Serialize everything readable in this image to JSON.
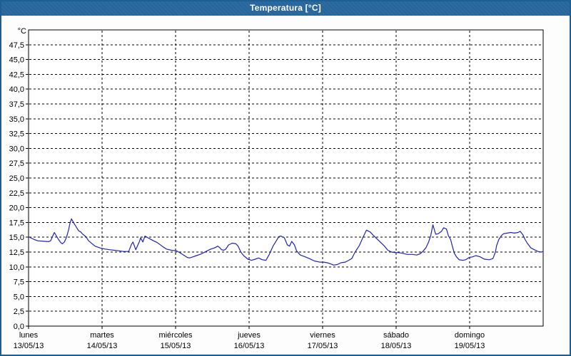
{
  "window": {
    "title": "Temperatura [°C]"
  },
  "colors": {
    "titlebar_bg": "#2c6ba1",
    "titlebar_text": "#ffffff",
    "frame_border": "#1e5f93",
    "panel_bg": "#fdfdfd",
    "plot_bg": "#ffffff",
    "axis_color": "#000000",
    "grid_color": "#000000",
    "line_color": "#2121bd",
    "label_color": "#000000"
  },
  "chart_data": {
    "type": "line",
    "title": "Temperatura [°C]",
    "ylabel": "°C",
    "grid": "dashed",
    "legend": "none",
    "y_axis": {
      "min": 0,
      "max": 50,
      "tick_step": 2.5,
      "unit_label": "°C",
      "tick_labels": [
        "0,0",
        "2,5",
        "5,0",
        "7,5",
        "10,0",
        "12,5",
        "15,0",
        "17,5",
        "20,0",
        "22,5",
        "25,0",
        "27,5",
        "30,0",
        "32,5",
        "35,0",
        "37,5",
        "40,0",
        "42,5",
        "45,0",
        "47,5"
      ]
    },
    "x_axis": {
      "hours_total": 168,
      "days": [
        {
          "name": "lunes",
          "date": "13/05/13"
        },
        {
          "name": "martes",
          "date": "14/05/13"
        },
        {
          "name": "miércoles",
          "date": "15/05/13"
        },
        {
          "name": "jueves",
          "date": "16/05/13"
        },
        {
          "name": "viernes",
          "date": "17/05/13"
        },
        {
          "name": "sábado",
          "date": "18/05/13"
        },
        {
          "name": "domingo",
          "date": "19/05/13"
        }
      ]
    },
    "series": [
      {
        "name": "Temperatura",
        "color": "#2121bd",
        "points": [
          [
            0,
            15.1
          ],
          [
            0.7,
            14.9
          ],
          [
            1.9,
            14.6
          ],
          [
            3,
            14.4
          ],
          [
            4.2,
            14.35
          ],
          [
            5.4,
            14.3
          ],
          [
            6.5,
            14.25
          ],
          [
            7.2,
            14.4
          ],
          [
            7.9,
            15.2
          ],
          [
            8.4,
            15.8
          ],
          [
            9.1,
            15.2
          ],
          [
            9.8,
            14.6
          ],
          [
            10.5,
            14.1
          ],
          [
            11,
            13.9
          ],
          [
            11.7,
            14.2
          ],
          [
            12.4,
            15.0
          ],
          [
            13.1,
            16.3
          ],
          [
            13.5,
            17.3
          ],
          [
            14,
            18.1
          ],
          [
            14.9,
            17.3
          ],
          [
            15.6,
            16.7
          ],
          [
            16.3,
            16.1
          ],
          [
            17,
            15.9
          ],
          [
            17.7,
            15.5
          ],
          [
            18.7,
            15.1
          ],
          [
            19.6,
            14.4
          ],
          [
            20.3,
            14.1
          ],
          [
            21.7,
            13.5
          ],
          [
            23.3,
            13.2
          ],
          [
            25,
            13.0
          ],
          [
            26.4,
            12.9
          ],
          [
            28,
            12.8
          ],
          [
            29.6,
            12.7
          ],
          [
            31,
            12.6
          ],
          [
            32.7,
            12.6
          ],
          [
            33.6,
            13.8
          ],
          [
            34.1,
            14.2
          ],
          [
            35,
            12.9
          ],
          [
            36.2,
            14.3
          ],
          [
            36.6,
            14.9
          ],
          [
            37.3,
            14.2
          ],
          [
            38,
            15.2
          ],
          [
            39,
            14.9
          ],
          [
            39.7,
            14.7
          ],
          [
            40.8,
            14.4
          ],
          [
            42,
            14.1
          ],
          [
            43.6,
            13.5
          ],
          [
            45,
            13.0
          ],
          [
            46.7,
            12.8
          ],
          [
            48.3,
            12.7
          ],
          [
            49,
            12.5
          ],
          [
            49.7,
            12.3
          ],
          [
            50.9,
            11.9
          ],
          [
            51.8,
            11.6
          ],
          [
            52.5,
            11.5
          ],
          [
            53.7,
            11.7
          ],
          [
            54.8,
            11.9
          ],
          [
            56,
            12.1
          ],
          [
            57.2,
            12.4
          ],
          [
            58.3,
            12.7
          ],
          [
            59.5,
            13.0
          ],
          [
            60.7,
            13.2
          ],
          [
            61.8,
            13.5
          ],
          [
            62.5,
            13.2
          ],
          [
            63,
            12.9
          ],
          [
            63.7,
            12.8
          ],
          [
            64.4,
            13.0
          ],
          [
            65.3,
            13.7
          ],
          [
            66.5,
            14.0
          ],
          [
            67.7,
            13.9
          ],
          [
            68.4,
            13.5
          ],
          [
            69.3,
            12.5
          ],
          [
            70.2,
            11.9
          ],
          [
            71.6,
            11.3
          ],
          [
            72.8,
            11.1
          ],
          [
            74,
            11.3
          ],
          [
            75.1,
            11.5
          ],
          [
            76.3,
            11.2
          ],
          [
            77.5,
            11.1
          ],
          [
            78.6,
            12.1
          ],
          [
            79.8,
            13.5
          ],
          [
            81,
            14.5
          ],
          [
            81.7,
            15.1
          ],
          [
            82.4,
            15.2
          ],
          [
            83.5,
            14.9
          ],
          [
            84.5,
            13.7
          ],
          [
            85.2,
            13.5
          ],
          [
            85.9,
            14.3
          ],
          [
            86.8,
            13.7
          ],
          [
            87.5,
            12.7
          ],
          [
            88.7,
            12.0
          ],
          [
            90.3,
            11.7
          ],
          [
            91.7,
            11.4
          ],
          [
            93.3,
            11.0
          ],
          [
            95,
            10.8
          ],
          [
            96.3,
            10.8
          ],
          [
            97.5,
            10.7
          ],
          [
            98.6,
            10.5
          ],
          [
            99.6,
            10.3
          ],
          [
            100.8,
            10.4
          ],
          [
            102,
            10.7
          ],
          [
            103.4,
            10.8
          ],
          [
            104.5,
            11.1
          ],
          [
            105.5,
            11.4
          ],
          [
            106.6,
            12.5
          ],
          [
            108,
            13.6
          ],
          [
            109.2,
            15.0
          ],
          [
            110.3,
            16.2
          ],
          [
            111.5,
            15.9
          ],
          [
            112.6,
            15.3
          ],
          [
            113.8,
            14.7
          ],
          [
            115,
            14.1
          ],
          [
            116.2,
            13.5
          ],
          [
            117.3,
            12.8
          ],
          [
            118.5,
            12.5
          ],
          [
            119.6,
            12.4
          ],
          [
            120.8,
            12.4
          ],
          [
            122,
            12.3
          ],
          [
            123.6,
            12.1
          ],
          [
            125.3,
            12.1
          ],
          [
            126.7,
            12.0
          ],
          [
            127.8,
            12.2
          ],
          [
            128.7,
            12.6
          ],
          [
            129.7,
            13.2
          ],
          [
            130.6,
            14.2
          ],
          [
            131.3,
            15.3
          ],
          [
            132,
            17.1
          ],
          [
            132.9,
            15.5
          ],
          [
            133.8,
            15.6
          ],
          [
            134.8,
            16.0
          ],
          [
            135.5,
            16.6
          ],
          [
            136.4,
            16.4
          ],
          [
            137.1,
            15.2
          ],
          [
            137.8,
            14.6
          ],
          [
            138.3,
            13.6
          ],
          [
            139,
            12.3
          ],
          [
            139.7,
            11.7
          ],
          [
            140.6,
            11.2
          ],
          [
            141.8,
            11.1
          ],
          [
            142.7,
            11.2
          ],
          [
            143.9,
            11.6
          ],
          [
            145,
            11.7
          ],
          [
            146,
            11.9
          ],
          [
            147.4,
            11.7
          ],
          [
            148.8,
            11.3
          ],
          [
            150.4,
            11.2
          ],
          [
            151.6,
            11.4
          ],
          [
            152.4,
            12.5
          ],
          [
            152.8,
            13.6
          ],
          [
            153.5,
            14.6
          ],
          [
            154.4,
            15.3
          ],
          [
            155.1,
            15.6
          ],
          [
            156.3,
            15.7
          ],
          [
            157.4,
            15.8
          ],
          [
            158.6,
            15.7
          ],
          [
            159.8,
            15.8
          ],
          [
            160.5,
            16.0
          ],
          [
            161.4,
            15.4
          ],
          [
            162.1,
            14.6
          ],
          [
            162.8,
            14.0
          ],
          [
            164,
            13.2
          ],
          [
            165.1,
            12.9
          ],
          [
            166.3,
            12.6
          ],
          [
            167.4,
            12.5
          ],
          [
            168,
            12.6
          ]
        ]
      }
    ]
  }
}
